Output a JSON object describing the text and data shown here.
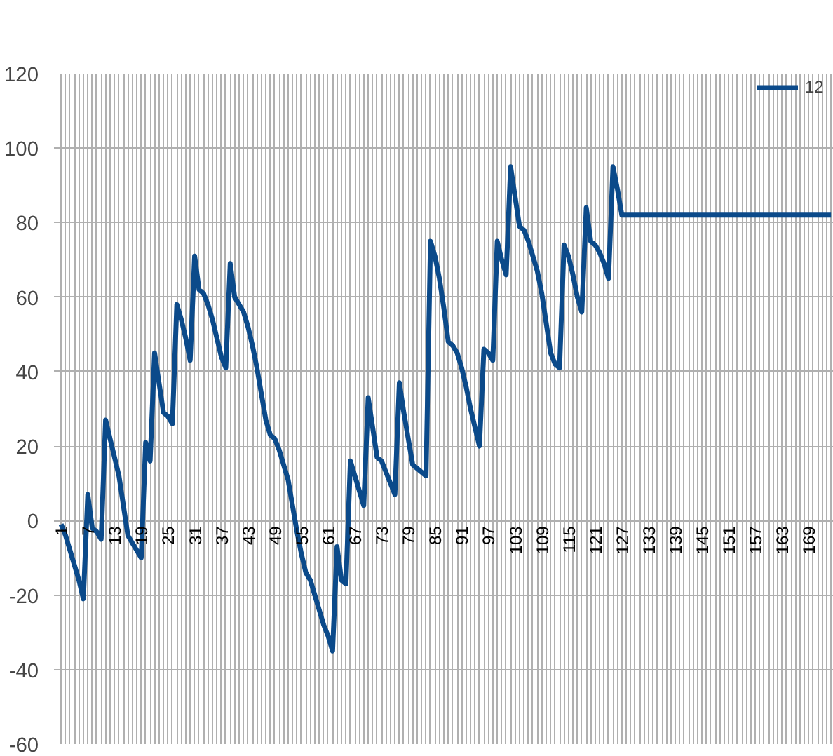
{
  "chart_data": {
    "type": "line",
    "categories": [
      "1",
      null,
      null,
      null,
      null,
      null,
      "7",
      null,
      null,
      null,
      null,
      null,
      "13",
      null,
      null,
      null,
      null,
      null,
      "19",
      null,
      null,
      null,
      null,
      null,
      "25",
      null,
      null,
      null,
      null,
      null,
      "31",
      null,
      null,
      null,
      null,
      null,
      "37",
      null,
      null,
      null,
      null,
      null,
      "43",
      null,
      null,
      null,
      null,
      null,
      "49",
      null,
      null,
      null,
      null,
      null,
      "55",
      null,
      null,
      null,
      null,
      null,
      "61",
      null,
      null,
      null,
      null,
      null,
      "67",
      null,
      null,
      null,
      null,
      null,
      "73",
      null,
      null,
      null,
      null,
      null,
      "79",
      null,
      null,
      null,
      null,
      null,
      "85",
      null,
      null,
      null,
      null,
      null,
      "91",
      null,
      null,
      null,
      null,
      null,
      "97",
      null,
      null,
      null,
      null,
      null,
      "103",
      null,
      null,
      null,
      null,
      null,
      "109",
      null,
      null,
      null,
      null,
      null,
      "115",
      null,
      null,
      null,
      null,
      null,
      "121",
      null,
      null,
      null,
      null,
      null,
      "127",
      null,
      null,
      null,
      null,
      null,
      "133",
      null,
      null,
      null,
      null,
      null,
      "139",
      null,
      null,
      null,
      null,
      null,
      "145",
      null,
      null,
      null,
      null,
      null,
      "151",
      null,
      null,
      null,
      null,
      null,
      "157",
      null,
      null,
      null,
      null,
      null,
      "163",
      null,
      null,
      null,
      null,
      null,
      "169",
      null,
      null,
      null,
      null,
      null
    ],
    "series": [
      {
        "name": "12",
        "color": "#0b4a8a",
        "values": [
          -1,
          -4,
          -8,
          -12,
          -16,
          -21,
          7,
          -2,
          -3,
          -5,
          27,
          22,
          17,
          12,
          4,
          -4,
          -6,
          -8,
          -10,
          21,
          16,
          45,
          37,
          29,
          28,
          26,
          58,
          54,
          49,
          43,
          71,
          62,
          61,
          58,
          54,
          49,
          44,
          41,
          69,
          60,
          58,
          56,
          52,
          47,
          41,
          34,
          27,
          23,
          22,
          19,
          15,
          11,
          4,
          -3,
          -9,
          -14,
          -16,
          -20,
          -24,
          -28,
          -31,
          -35,
          -7,
          -16,
          -17,
          16,
          12,
          8,
          4,
          33,
          25,
          17,
          16,
          13,
          10,
          7,
          37,
          29,
          22,
          15,
          14,
          13,
          12,
          75,
          71,
          65,
          57,
          48,
          47,
          45,
          41,
          36,
          30,
          25,
          20,
          46,
          45,
          43,
          75,
          70,
          66,
          95,
          87,
          79,
          78,
          75,
          71,
          67,
          61,
          53,
          45,
          42,
          41,
          74,
          71,
          66,
          60,
          56,
          84,
          75,
          74,
          72,
          69,
          65,
          95,
          89,
          82,
          82,
          82,
          82,
          82,
          82,
          82,
          82,
          82,
          82,
          82,
          82,
          82,
          82,
          82,
          82,
          82,
          82,
          82,
          82,
          82,
          82,
          82,
          82,
          82,
          82,
          82,
          82,
          82,
          82,
          82,
          82,
          82,
          82,
          82,
          82,
          82,
          82,
          82,
          82,
          82,
          82,
          82,
          82,
          82,
          82,
          82,
          82
        ]
      }
    ],
    "ylim": [
      -60,
      120
    ],
    "yticks": [
      -60,
      -40,
      -20,
      0,
      20,
      40,
      60,
      80,
      100,
      120
    ],
    "grid": true,
    "legend": "top right",
    "marker": "none",
    "line_style": "solid"
  }
}
